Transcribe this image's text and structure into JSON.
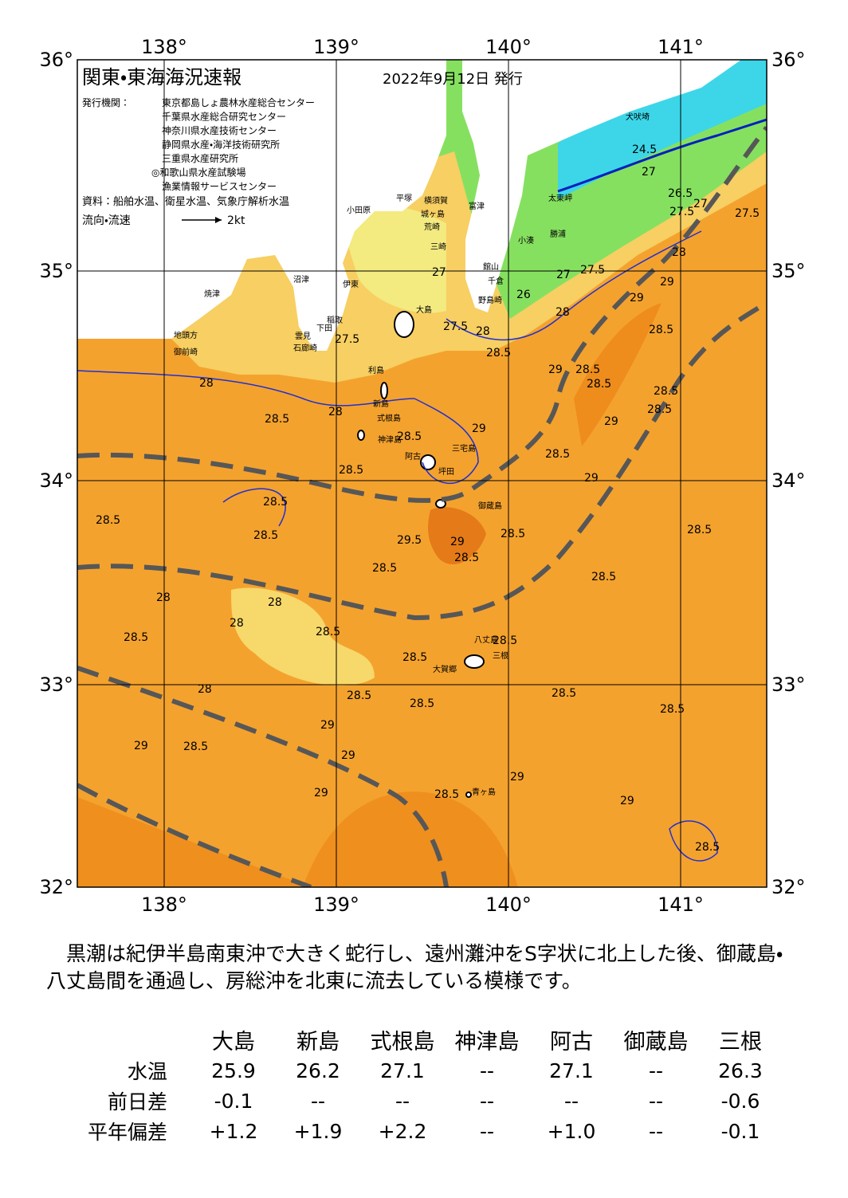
{
  "header": {
    "title": "関東・東海海況速報",
    "date": "2022年9月12日 発行",
    "issuer_label": "発行機関：",
    "issuers": [
      "東京都島しょ農林水産総合センター",
      "千葉県水産総合研究センター",
      "神奈川県水産技術センター",
      "静岡県水産・海洋技術研究所",
      "三重県水産研究所",
      "◎和歌山県水産試験場",
      "漁業情報サービスセンター"
    ],
    "source": "資料：船舶水温、衛星水温、気象庁解析水温",
    "flow_label": "流向・流速",
    "flow_scale": "2kt"
  },
  "map": {
    "lon_labels": [
      "138°",
      "139°",
      "140°",
      "141°"
    ],
    "lat_labels": [
      "36°",
      "35°",
      "34°",
      "33°",
      "32°"
    ],
    "places": [
      "犬吠埼",
      "太東岬",
      "勝浦",
      "小湊",
      "館山",
      "千倉",
      "野島崎",
      "富津",
      "横須賀",
      "城ヶ島",
      "荒崎",
      "三崎",
      "平塚",
      "小田原",
      "大島",
      "伊東",
      "沼津",
      "焼津",
      "地頭方",
      "御前崎",
      "稲取",
      "下田",
      "雲見",
      "石廊崎",
      "利島",
      "新島",
      "式根島",
      "神津島",
      "三宅島",
      "阿古",
      "坪田",
      "御蔵島",
      "八丈島",
      "三根",
      "大賀郷",
      "青ヶ島"
    ],
    "contours": [
      "24.5",
      "27",
      "26.5",
      "27.5",
      "27",
      "27.5",
      "28",
      "27",
      "27.5",
      "26",
      "28",
      "27.5",
      "28",
      "28.5",
      "27",
      "27.5",
      "28",
      "28",
      "28.5",
      "28.5",
      "29",
      "28.5",
      "28.5",
      "28.5",
      "29",
      "29",
      "28.5",
      "29",
      "29",
      "28.5",
      "28.5",
      "28.5",
      "29",
      "28.5",
      "28.5",
      "28.5",
      "28.5",
      "28.5",
      "29.5",
      "29",
      "28.5",
      "28.5",
      "28.5",
      "28",
      "28",
      "28",
      "28.5",
      "28.5",
      "28.5",
      "28.5",
      "28",
      "28.5",
      "28.5",
      "28.5",
      "28.5",
      "29",
      "29",
      "29",
      "28.5",
      "29",
      "29",
      "28.5",
      "29",
      "28.5"
    ]
  },
  "description": "黒潮は紀伊半島南東沖で大きく蛇行し、遠州灘沖をS字状に北上した後、御蔵島・八丈島間を通過し、房総沖を北東に流去している模様です。",
  "table": {
    "columns": [
      "大島",
      "新島",
      "式根島",
      "神津島",
      "阿古",
      "御蔵島",
      "三根"
    ],
    "rows": [
      {
        "label": "水温",
        "cells": [
          "25.9",
          "26.2",
          "27.1",
          "--",
          "27.1",
          "--",
          "26.3"
        ]
      },
      {
        "label": "前日差",
        "cells": [
          "-0.1",
          "--",
          "--",
          "--",
          "--",
          "--",
          "-0.6"
        ]
      },
      {
        "label": "平年偏差",
        "cells": [
          "+1.2",
          "+1.9",
          "+2.2",
          "--",
          "+1.0",
          "--",
          "-0.1"
        ]
      }
    ]
  }
}
